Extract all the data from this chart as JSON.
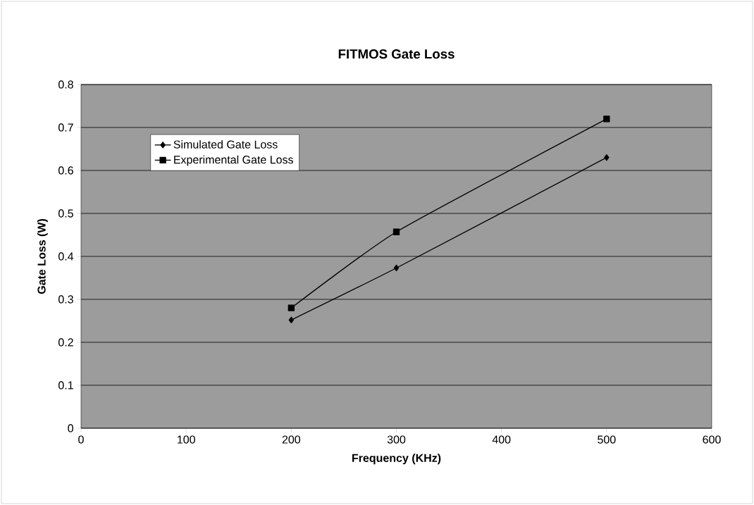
{
  "chart_data": {
    "type": "line",
    "title": "FITMOS Gate Loss",
    "xlabel": "Frequency (KHz)",
    "ylabel": "Gate Loss (W)",
    "x": [
      200,
      300,
      500
    ],
    "series": [
      {
        "name": "Simulated Gate Loss",
        "color": "#000000",
        "marker": "diamond",
        "values": [
          0.252,
          0.373,
          0.63
        ]
      },
      {
        "name": "Experimental Gate Loss",
        "color": "#000000",
        "marker": "square",
        "values": [
          0.28,
          0.457,
          0.72
        ]
      }
    ],
    "xlim": [
      0,
      600
    ],
    "xticks": [
      0,
      100,
      200,
      300,
      400,
      500,
      600
    ],
    "ylim": [
      0,
      0.8
    ],
    "yticks": [
      0,
      0.1,
      0.2,
      0.3,
      0.4,
      0.5,
      0.6,
      0.7,
      0.8
    ],
    "grid": "y",
    "legend": "top left",
    "line_style": "solid"
  }
}
